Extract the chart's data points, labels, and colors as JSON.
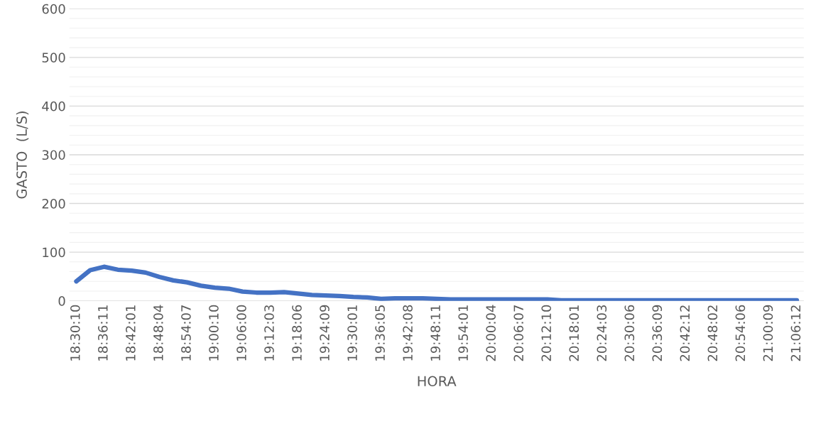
{
  "chart_data": {
    "type": "line",
    "xlabel": "HORA",
    "ylabel": "GASTO  (L/S)",
    "categories": [
      "18:30:10",
      null,
      "18:36:11",
      null,
      "18:42:01",
      null,
      "18:48:04",
      null,
      "18:54:07",
      null,
      "19:00:10",
      null,
      "19:06:00",
      null,
      "19:12:03",
      null,
      "19:18:06",
      null,
      "19:24:09",
      null,
      "19:30:01",
      null,
      "19:36:05",
      null,
      "19:42:08",
      null,
      "19:48:11",
      null,
      "19:54:01",
      null,
      "20:00:04",
      null,
      "20:06:07",
      null,
      "20:12:10",
      null,
      "20:18:01",
      null,
      "20:24:03",
      null,
      "20:30:06",
      null,
      "20:36:09",
      null,
      "20:42:12",
      null,
      "20:48:02",
      null,
      "20:54:06",
      null,
      "21:00:09",
      null,
      "21:06:12"
    ],
    "series": [
      {
        "color": "#4472c4",
        "values": [
          40,
          63,
          70,
          64,
          62,
          58,
          49,
          42,
          38,
          31,
          27,
          25,
          19,
          17,
          17,
          18,
          15,
          12,
          11,
          10,
          8,
          7,
          4,
          5,
          5,
          5,
          4,
          3,
          3,
          3,
          3,
          3,
          3,
          3,
          3,
          1,
          1,
          1,
          1,
          1,
          1,
          1,
          1,
          1,
          1,
          1,
          1,
          1,
          1,
          1,
          1,
          1,
          1
        ]
      }
    ],
    "ylim": [
      0,
      600
    ],
    "yticks": [
      0,
      {
        "value": 20,
        "label": null
      },
      {
        "value": 40,
        "label": null
      },
      {
        "value": 60,
        "label": null
      },
      {
        "value": 80,
        "label": null
      },
      100,
      {
        "value": 120,
        "label": null
      },
      {
        "value": 140,
        "label": null
      },
      {
        "value": 160,
        "label": null
      },
      {
        "value": 180,
        "label": null
      },
      200,
      {
        "value": 220,
        "label": null
      },
      {
        "value": 240,
        "label": null
      },
      {
        "value": 260,
        "label": null
      },
      {
        "value": 280,
        "label": null
      },
      300,
      {
        "value": 320,
        "label": null
      },
      {
        "value": 340,
        "label": null
      },
      {
        "value": 360,
        "label": null
      },
      {
        "value": 380,
        "label": null
      },
      400,
      {
        "value": 420,
        "label": null
      },
      {
        "value": 440,
        "label": null
      },
      {
        "value": 460,
        "label": null
      },
      {
        "value": 480,
        "label": null
      },
      500,
      {
        "value": 520,
        "label": null
      },
      {
        "value": 540,
        "label": null
      },
      {
        "value": 560,
        "label": null
      },
      {
        "value": 580,
        "label": null
      },
      600
    ],
    "grid": "y",
    "marker": "none",
    "line_style": "solid"
  }
}
